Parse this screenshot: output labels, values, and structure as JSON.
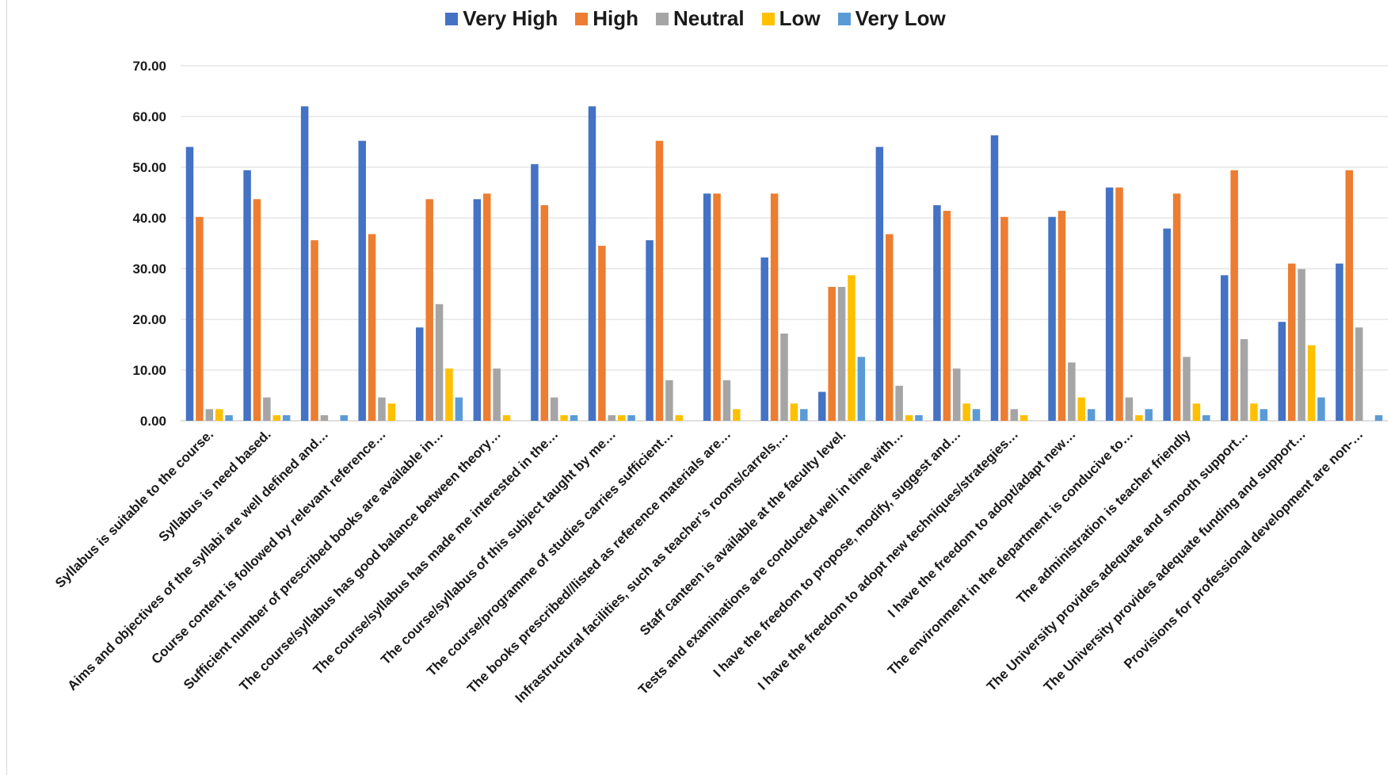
{
  "chart_data": {
    "type": "bar",
    "categories": [
      "Syllabus is suitable to the course.",
      "Syllabus is need based.",
      "Aims and objectives of the syllabi are well defined and…",
      "Course content is followed by relevant reference…",
      "Sufficient number of prescribed books are available in…",
      "The course/syllabus has good balance between theory…",
      "The course/syllabus has made me interested in the…",
      "The course/syllabus of this subject taught by me…",
      "The course/programme of studies carries sufficient…",
      "The books prescribed//listed as reference materials are…",
      "Infrastructural facilities, such as teacher’s rooms/carrels,…",
      "Staff canteen is available at the faculty level.",
      "Tests and examinations are conducted well in time with…",
      "I have the freedom to propose, modify, suggest and…",
      "I have the freedom to adopt new techniques/strategies…",
      "I have the freedom to adopt/adapt new…",
      "The environment in the department is conducive to…",
      "The administration is teacher friendly",
      "The University provides adequate and smooth support…",
      "The University provides adequate funding and support…",
      "Provisions for professional development are non-…"
    ],
    "series": [
      {
        "name": "Very High",
        "color": "#4472C4",
        "values": [
          54.0,
          49.4,
          62.0,
          55.2,
          18.4,
          43.7,
          50.6,
          62.0,
          35.6,
          44.8,
          32.2,
          5.7,
          54.0,
          42.5,
          56.3,
          40.2,
          46.0,
          37.9,
          28.7,
          19.5,
          31.0
        ]
      },
      {
        "name": "High",
        "color": "#ED7D31",
        "values": [
          40.2,
          43.7,
          35.6,
          36.8,
          43.7,
          44.8,
          42.5,
          34.5,
          55.2,
          44.8,
          44.8,
          26.4,
          36.8,
          41.4,
          40.2,
          41.4,
          46.0,
          44.8,
          49.4,
          31.0,
          49.4
        ]
      },
      {
        "name": "Neutral",
        "color": "#A5A5A5",
        "values": [
          2.3,
          4.6,
          1.1,
          4.6,
          23.0,
          10.3,
          4.6,
          1.1,
          8.0,
          8.0,
          17.2,
          26.4,
          6.9,
          10.3,
          2.3,
          11.5,
          4.6,
          12.6,
          16.1,
          29.9,
          18.4
        ]
      },
      {
        "name": "Low",
        "color": "#FFC000",
        "values": [
          2.3,
          1.1,
          0,
          3.4,
          10.3,
          1.1,
          1.1,
          1.1,
          1.1,
          2.3,
          3.4,
          28.7,
          1.1,
          3.4,
          1.1,
          4.6,
          1.1,
          3.4,
          3.4,
          14.9,
          0
        ]
      },
      {
        "name": "Very Low",
        "color": "#5B9BD5",
        "values": [
          1.1,
          1.1,
          1.1,
          0,
          4.6,
          0,
          1.1,
          1.1,
          0,
          0,
          2.3,
          12.6,
          1.1,
          2.3,
          0,
          2.3,
          2.3,
          1.1,
          2.3,
          4.6,
          1.1
        ]
      }
    ],
    "yticks": [
      "0.00",
      "10.00",
      "20.00",
      "30.00",
      "40.00",
      "50.00",
      "60.00",
      "70.00"
    ],
    "ylim": [
      0,
      70
    ],
    "grid": true,
    "legend_position": "top"
  }
}
